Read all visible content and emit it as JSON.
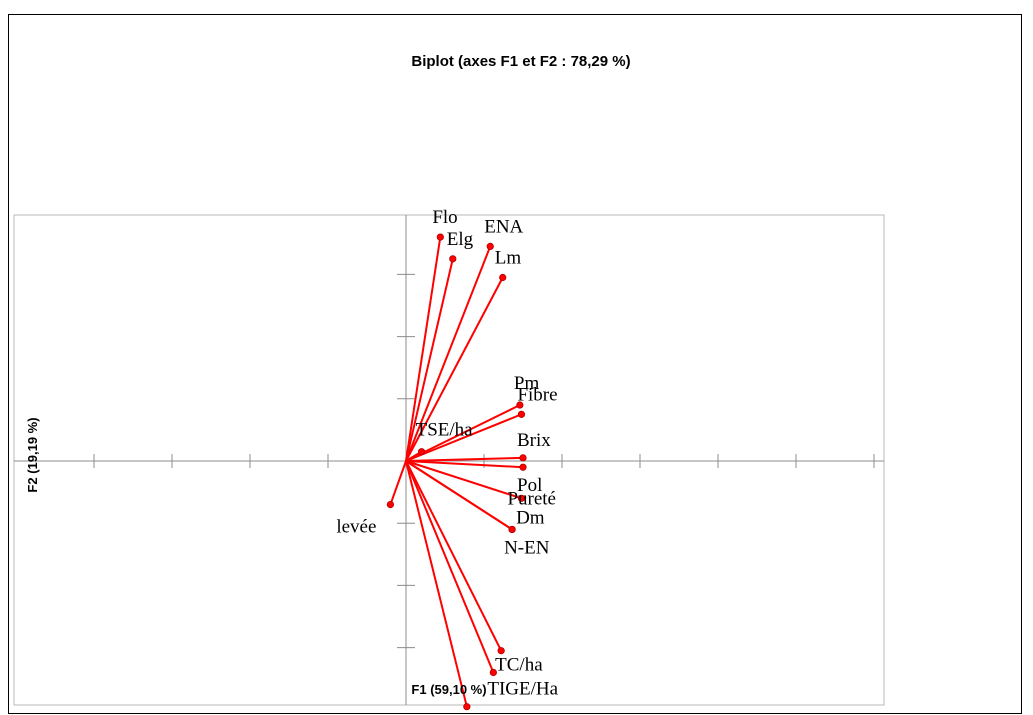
{
  "chart_data": {
    "type": "scatter",
    "subtype": "biplot-vectors",
    "title": "Biplot (axes F1 et F2 : 78,29 %)",
    "xlabel": "F1 (59,10 %)",
    "ylabel": "F2 (19,19 %)",
    "xlim": [
      -1.0,
      1.5
    ],
    "ylim": [
      -0.8,
      0.8
    ],
    "grid": false,
    "series": [
      {
        "color": "#ff0000",
        "points": [
          {
            "label": "Flo",
            "x": 0.22,
            "y": 0.72
          },
          {
            "label": "Elg",
            "x": 0.3,
            "y": 0.65
          },
          {
            "label": "ENA",
            "x": 0.54,
            "y": 0.69
          },
          {
            "label": "Lm",
            "x": 0.62,
            "y": 0.59
          },
          {
            "label": "Pm",
            "x": 0.73,
            "y": 0.18
          },
          {
            "label": "Fibre",
            "x": 0.74,
            "y": 0.15
          },
          {
            "label": "TSE/ha",
            "x": 0.1,
            "y": 0.03
          },
          {
            "label": "Brix",
            "x": 0.75,
            "y": 0.01
          },
          {
            "label": "Pol",
            "x": 0.75,
            "y": -0.02
          },
          {
            "label": "Pureté",
            "x": 0.74,
            "y": -0.12
          },
          {
            "label": "Dm",
            "x": 0.68,
            "y": -0.22
          },
          {
            "label": "N-EN",
            "x": 0.68,
            "y": -0.22
          },
          {
            "label": "levée",
            "x": -0.1,
            "y": -0.14
          },
          {
            "label": "TC/ha",
            "x": 0.61,
            "y": -0.61
          },
          {
            "label": "TIGE/Ha",
            "x": 0.56,
            "y": -0.68
          },
          {
            "label": "",
            "x": 0.39,
            "y": -0.79
          }
        ]
      }
    ]
  }
}
